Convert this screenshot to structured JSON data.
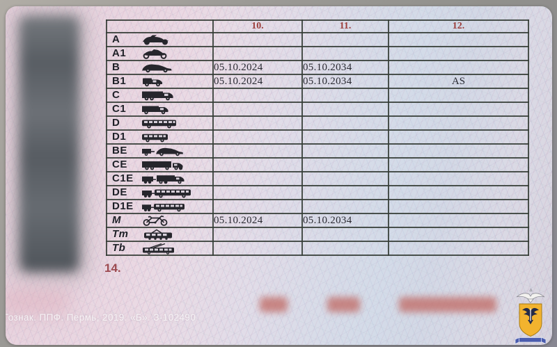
{
  "card": {
    "table": {
      "header": {
        "cat": "",
        "col10": "10.",
        "col11": "11.",
        "col12": "12."
      },
      "rows": [
        {
          "category": "A",
          "icon": "motorcycle-icon",
          "col10": "",
          "col11": "",
          "col12": ""
        },
        {
          "category": "A1",
          "icon": "light-motorcycle-icon",
          "col10": "",
          "col11": "",
          "col12": ""
        },
        {
          "category": "B",
          "icon": "car-icon",
          "col10": "05.10.2024",
          "col11": "05.10.2034",
          "col12": ""
        },
        {
          "category": "B1",
          "icon": "quadricycle-icon",
          "col10": "05.10.2024",
          "col11": "05.10.2034",
          "col12": "AS"
        },
        {
          "category": "C",
          "icon": "truck-icon",
          "col10": "",
          "col11": "",
          "col12": ""
        },
        {
          "category": "C1",
          "icon": "medium-truck-icon",
          "col10": "",
          "col11": "",
          "col12": ""
        },
        {
          "category": "D",
          "icon": "bus-icon",
          "col10": "",
          "col11": "",
          "col12": ""
        },
        {
          "category": "D1",
          "icon": "minibus-icon",
          "col10": "",
          "col11": "",
          "col12": ""
        },
        {
          "category": "BE",
          "icon": "car-trailer-icon",
          "col10": "",
          "col11": "",
          "col12": ""
        },
        {
          "category": "CE",
          "icon": "truck-trailer-icon",
          "col10": "",
          "col11": "",
          "col12": ""
        },
        {
          "category": "C1E",
          "icon": "medium-truck-trailer-icon",
          "col10": "",
          "col11": "",
          "col12": ""
        },
        {
          "category": "DE",
          "icon": "bus-trailer-icon",
          "col10": "",
          "col11": "",
          "col12": ""
        },
        {
          "category": "D1E",
          "icon": "minibus-trailer-icon",
          "col10": "",
          "col11": "",
          "col12": ""
        },
        {
          "category": "M",
          "icon": "moped-icon",
          "col10": "05.10.2024",
          "col11": "05.10.2034",
          "col12": ""
        },
        {
          "category": "Tm",
          "icon": "tram-icon",
          "col10": "",
          "col11": "",
          "col12": ""
        },
        {
          "category": "Tb",
          "icon": "trolleybus-icon",
          "col10": "",
          "col11": "",
          "col12": ""
        }
      ],
      "italic_categories": [
        "M",
        "Tm",
        "Tb"
      ]
    },
    "field14_label": "14.",
    "printer_note": "Гознак. ППФ. Пермь, 2019. «Б». З-102490",
    "redactions": {
      "barcode": "blurred",
      "serial_number": "blurred red digits"
    },
    "colors": {
      "header_number": "#9c3f3c",
      "table_border": "#343c35",
      "date_text": "#2b2b33",
      "category_text": "#1e2027",
      "card_pink": "#e7d4de",
      "card_blue": "#dde2ec",
      "serial_red": "#c2706b",
      "field14": "#9c4a50",
      "emblem_shield_yellow": "#f2b32e",
      "emblem_eagle_navy": "#252b47",
      "emblem_ribbon_blue": "#4a5cae"
    }
  }
}
